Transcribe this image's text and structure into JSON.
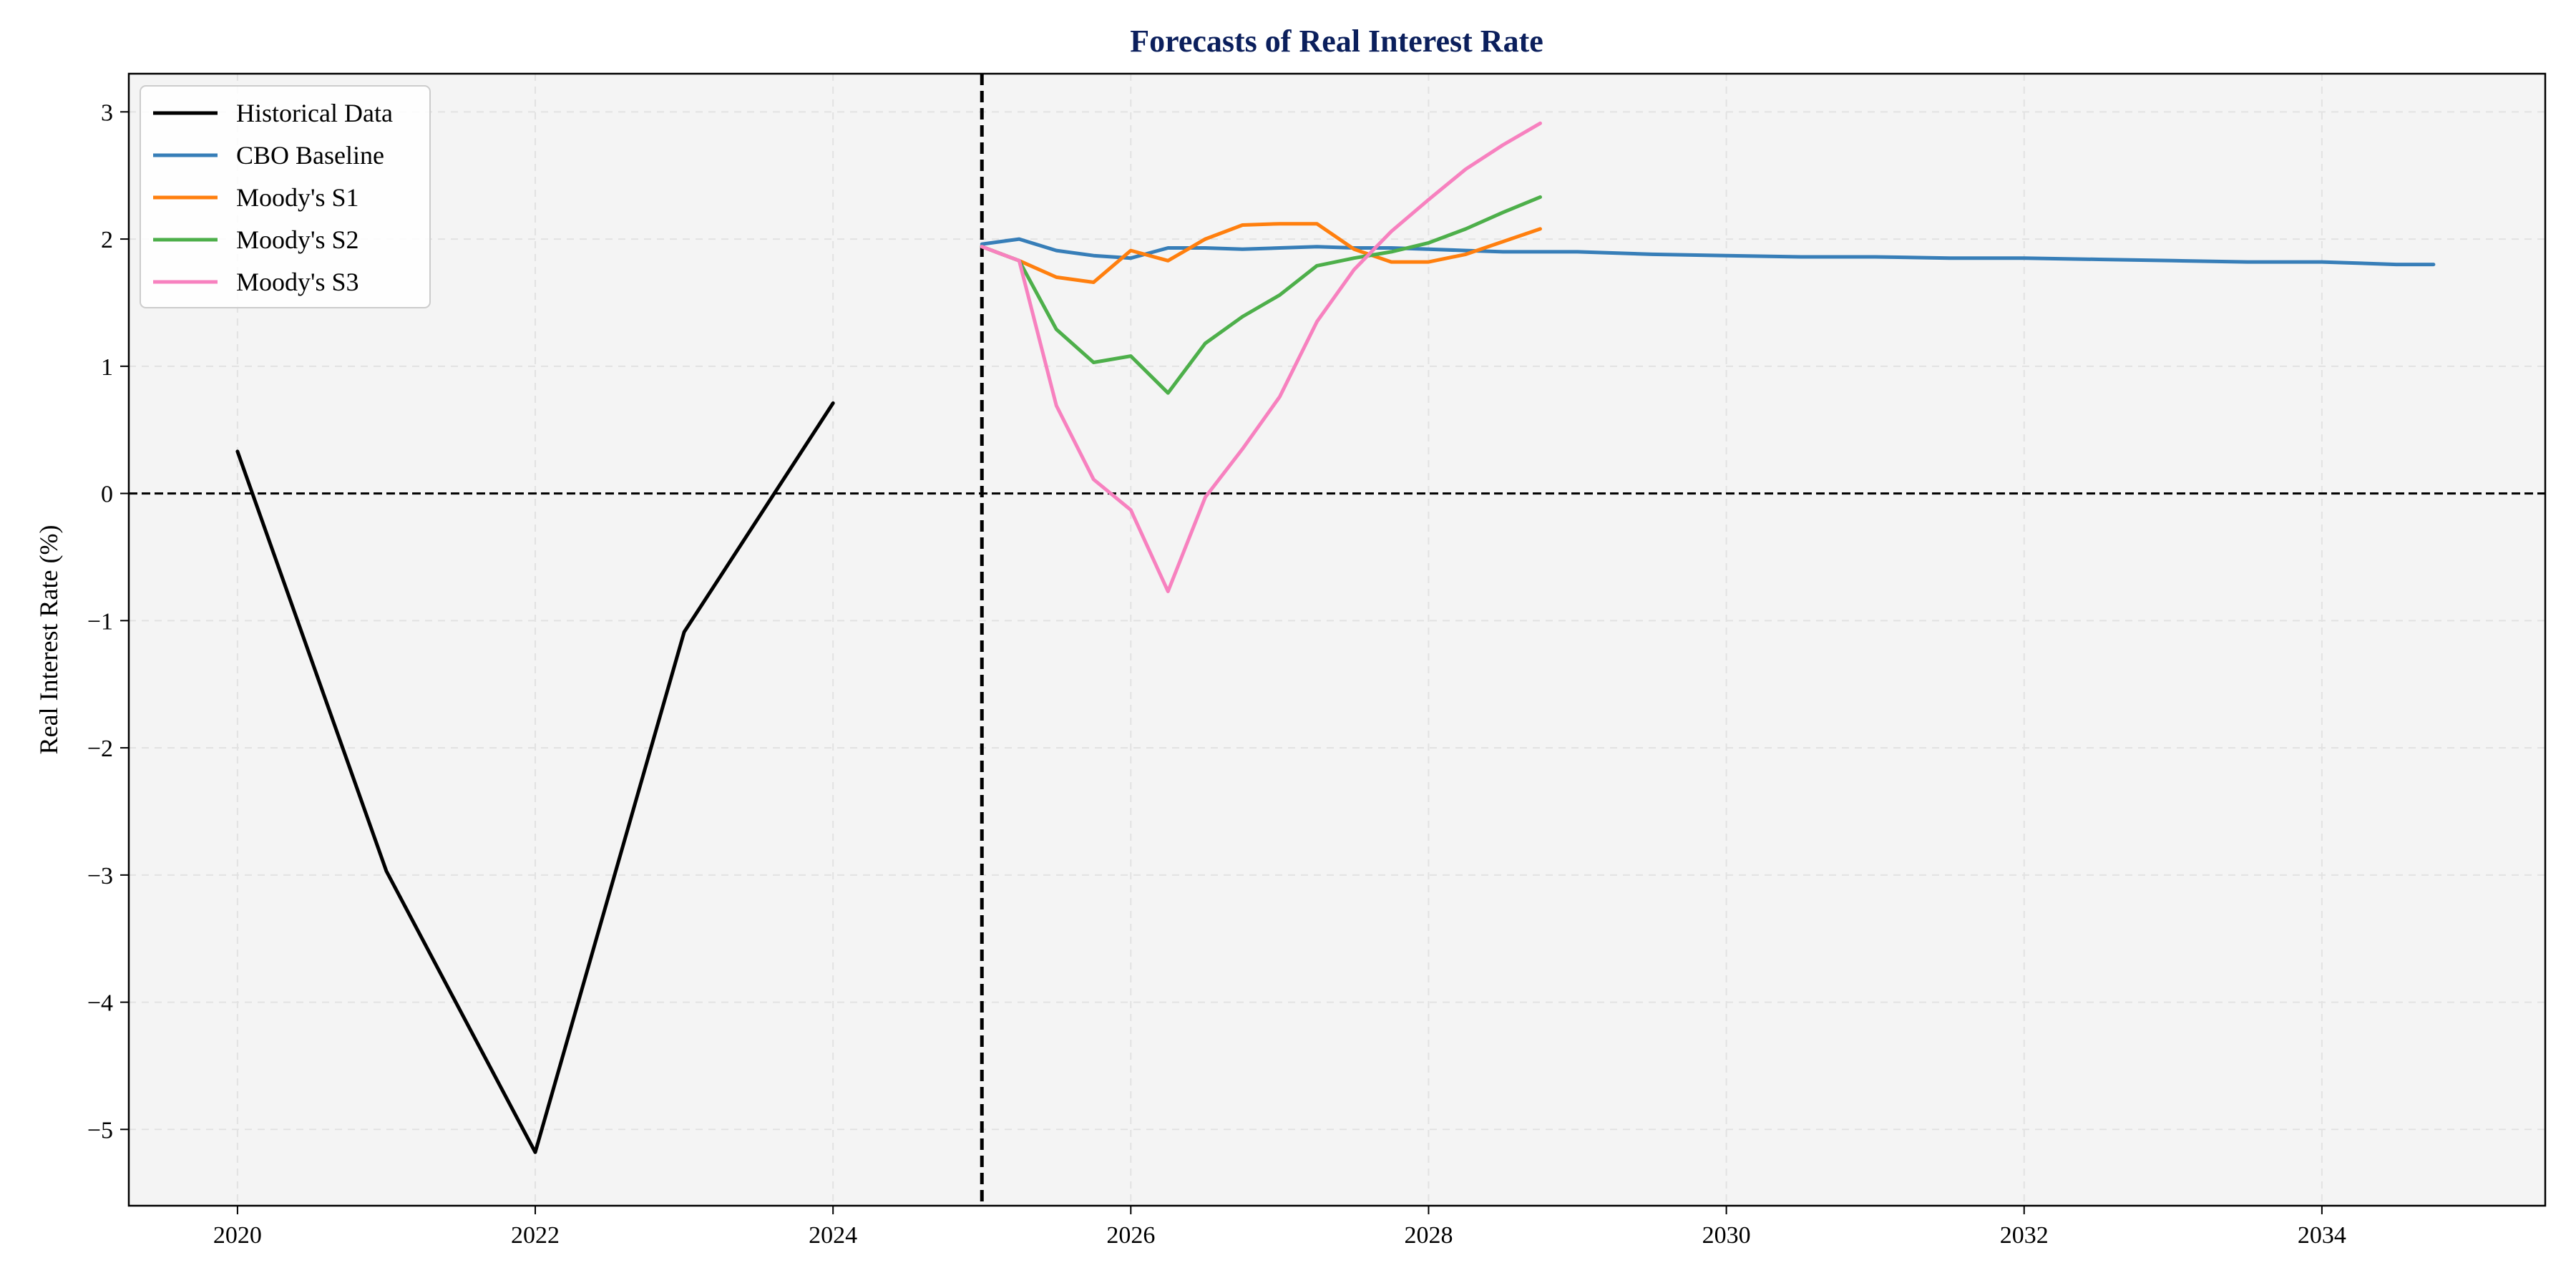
{
  "chart_data": {
    "type": "line",
    "title": "Forecasts of Real Interest Rate",
    "xlabel": "",
    "ylabel": "Real Interest Rate (%)",
    "xlim": [
      2019.27,
      2035.5
    ],
    "ylim": [
      -5.6,
      3.3
    ],
    "xticks": [
      2020,
      2022,
      2024,
      2026,
      2028,
      2030,
      2032,
      2034
    ],
    "yticks": [
      -5,
      -4,
      -3,
      -2,
      -1,
      0,
      1,
      2,
      3
    ],
    "ytick_labels": [
      "−5",
      "−4",
      "−3",
      "−2",
      "−1",
      "0",
      "1",
      "2",
      "3"
    ],
    "grid": true,
    "legend_position": "top-left",
    "reference_lines": [
      {
        "orientation": "horizontal",
        "value": 0,
        "style": "dashed",
        "color": "#000000"
      },
      {
        "orientation": "vertical",
        "value": 2025,
        "style": "dashed",
        "color": "#000000"
      }
    ],
    "series": [
      {
        "name": "Historical Data",
        "color": "#000000",
        "x": [
          2020,
          2021,
          2022,
          2023,
          2024
        ],
        "y": [
          0.33,
          -2.97,
          -5.18,
          -1.09,
          0.71
        ]
      },
      {
        "name": "CBO Baseline",
        "color": "#377eb8",
        "x": [
          2025,
          2025.25,
          2025.5,
          2025.75,
          2026,
          2026.25,
          2026.5,
          2026.75,
          2027,
          2027.25,
          2027.5,
          2027.75,
          2028,
          2028.25,
          2028.5,
          2028.75,
          2029,
          2029.5,
          2030,
          2030.5,
          2031,
          2031.5,
          2032,
          2032.5,
          2033,
          2033.5,
          2034,
          2034.5,
          2034.75
        ],
        "y": [
          1.96,
          2.0,
          1.91,
          1.87,
          1.85,
          1.93,
          1.93,
          1.92,
          1.93,
          1.94,
          1.93,
          1.93,
          1.92,
          1.91,
          1.9,
          1.9,
          1.9,
          1.88,
          1.87,
          1.86,
          1.86,
          1.85,
          1.85,
          1.84,
          1.83,
          1.82,
          1.82,
          1.8,
          1.8
        ]
      },
      {
        "name": "Moody's S1",
        "color": "#ff7f0e",
        "x": [
          2025,
          2025.25,
          2025.5,
          2025.75,
          2026,
          2026.25,
          2026.5,
          2026.75,
          2027,
          2027.25,
          2027.5,
          2027.75,
          2028,
          2028.25,
          2028.5,
          2028.75
        ],
        "y": [
          1.94,
          1.83,
          1.7,
          1.66,
          1.91,
          1.83,
          2.0,
          2.11,
          2.12,
          2.12,
          1.92,
          1.82,
          1.82,
          1.88,
          1.98,
          2.08
        ]
      },
      {
        "name": "Moody's S2",
        "color": "#4daf4a",
        "x": [
          2025,
          2025.25,
          2025.5,
          2025.75,
          2026,
          2026.25,
          2026.5,
          2026.75,
          2027,
          2027.25,
          2027.5,
          2027.75,
          2028,
          2028.25,
          2028.5,
          2028.75
        ],
        "y": [
          1.94,
          1.83,
          1.29,
          1.03,
          1.08,
          0.79,
          1.18,
          1.39,
          1.56,
          1.79,
          1.85,
          1.9,
          1.97,
          2.08,
          2.21,
          2.33
        ]
      },
      {
        "name": "Moody's S3",
        "color": "#f781bf",
        "x": [
          2025,
          2025.25,
          2025.5,
          2025.75,
          2026,
          2026.25,
          2026.5,
          2026.75,
          2027,
          2027.25,
          2027.5,
          2027.75,
          2028,
          2028.25,
          2028.5,
          2028.75
        ],
        "y": [
          1.94,
          1.83,
          0.69,
          0.11,
          -0.13,
          -0.77,
          -0.03,
          0.35,
          0.76,
          1.35,
          1.76,
          2.06,
          2.31,
          2.55,
          2.74,
          2.91
        ]
      }
    ]
  }
}
